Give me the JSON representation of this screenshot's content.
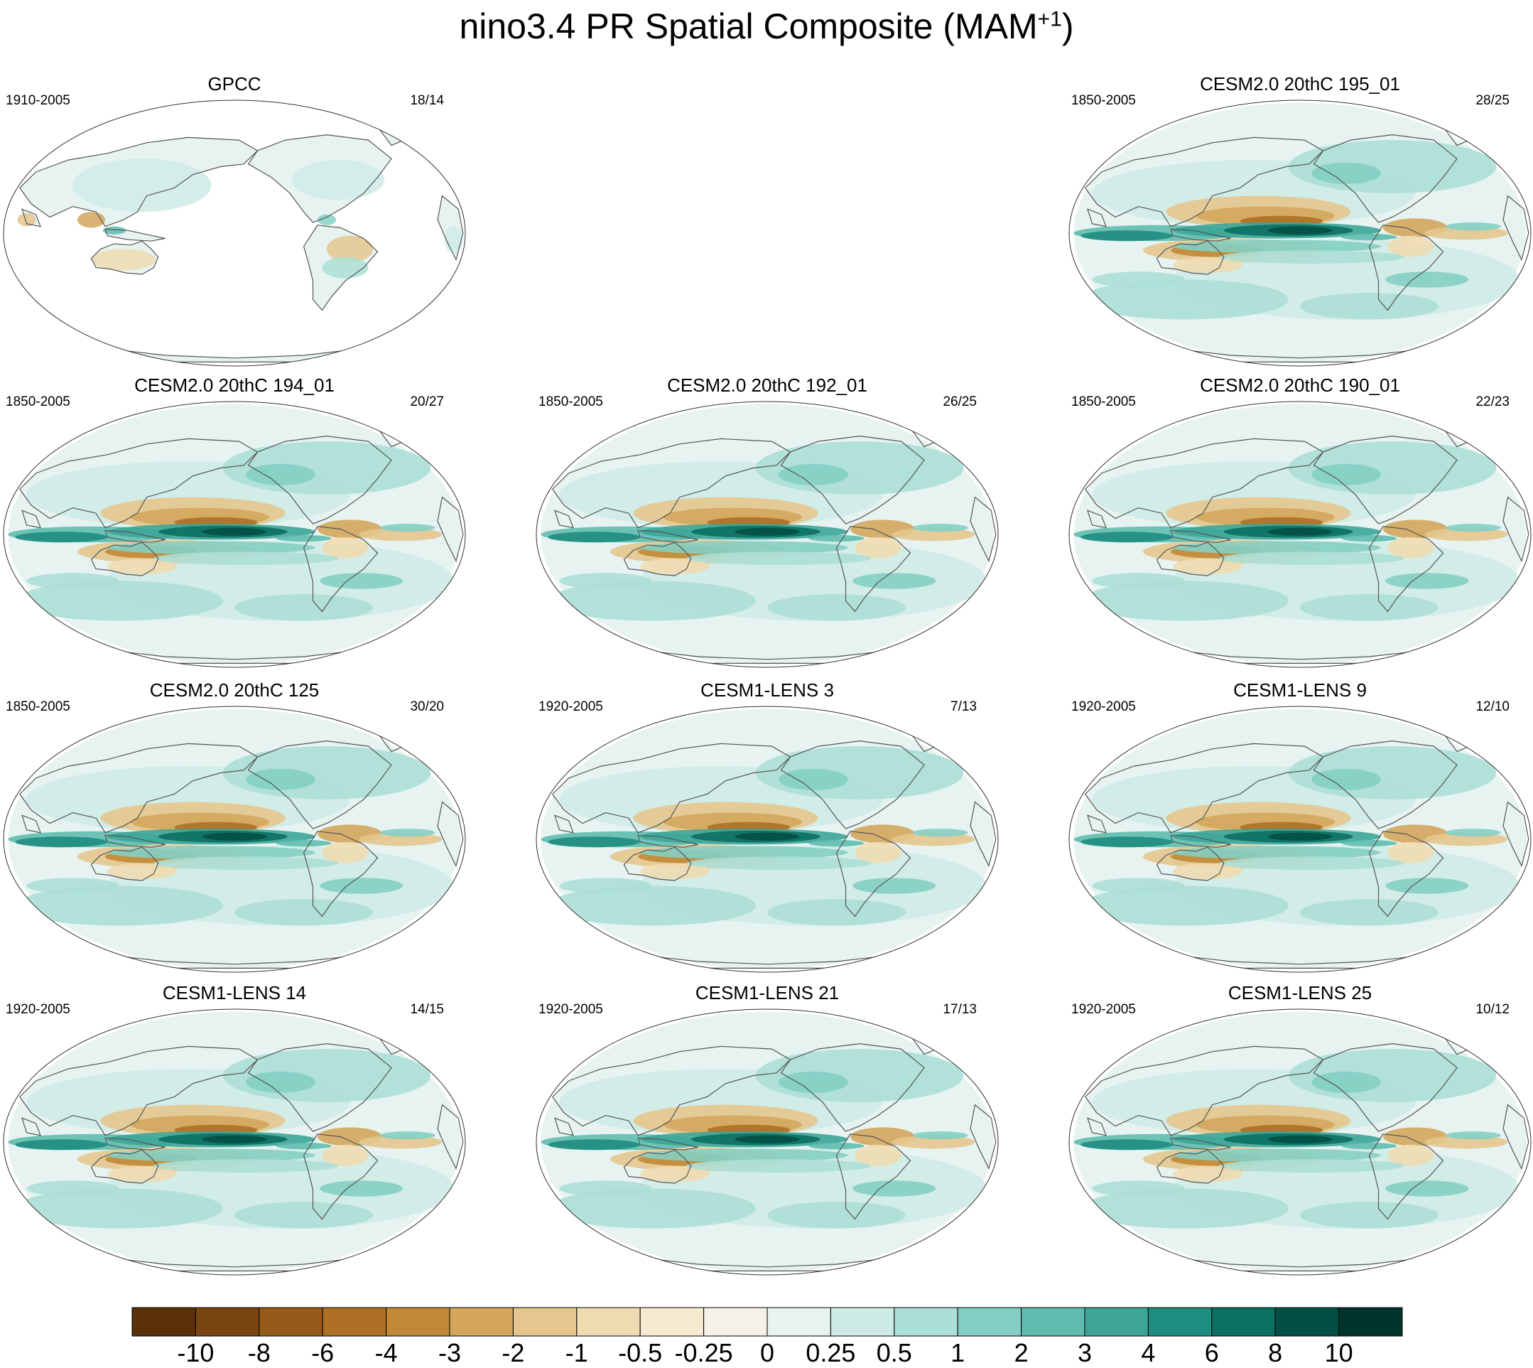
{
  "figure": {
    "title_main": "nino3.4 PR Spatial Composite (MAM",
    "title_sup": "+1",
    "title_close": ")"
  },
  "panels": [
    {
      "id": "gpcc",
      "title": "GPCC",
      "period": "1910-2005",
      "count": "18/14",
      "type": "obs"
    },
    {
      "id": "cesm2-195",
      "title": "CESM2.0 20thC 195_01",
      "period": "1850-2005",
      "count": "28/25",
      "type": "model"
    },
    {
      "id": "cesm2-194",
      "title": "CESM2.0 20thC 194_01",
      "period": "1850-2005",
      "count": "20/27",
      "type": "model"
    },
    {
      "id": "cesm2-192",
      "title": "CESM2.0 20thC 192_01",
      "period": "1850-2005",
      "count": "26/25",
      "type": "model"
    },
    {
      "id": "cesm2-190",
      "title": "CESM2.0 20thC 190_01",
      "period": "1850-2005",
      "count": "22/23",
      "type": "model"
    },
    {
      "id": "cesm2-125",
      "title": "CESM2.0 20thC 125",
      "period": "1850-2005",
      "count": "30/20",
      "type": "model"
    },
    {
      "id": "lens3",
      "title": "CESM1-LENS 3",
      "period": "1920-2005",
      "count": "7/13",
      "type": "model"
    },
    {
      "id": "lens9",
      "title": "CESM1-LENS 9",
      "period": "1920-2005",
      "count": "12/10",
      "type": "model"
    },
    {
      "id": "lens14",
      "title": "CESM1-LENS 14",
      "period": "1920-2005",
      "count": "14/15",
      "type": "model"
    },
    {
      "id": "lens21",
      "title": "CESM1-LENS 21",
      "period": "1920-2005",
      "count": "17/13",
      "type": "model"
    },
    {
      "id": "lens25",
      "title": "CESM1-LENS 25",
      "period": "1920-2005",
      "count": "10/12",
      "type": "model"
    }
  ],
  "chart_data": {
    "type": "heatmap",
    "title": "nino3.4 PR Spatial Composite (MAM+1)",
    "colorbar": {
      "ticks": [
        "-10",
        "-8",
        "-6",
        "-4",
        "-3",
        "-2",
        "-1",
        "-0.5",
        "-0.25",
        "0",
        "0.25",
        "0.5",
        "1",
        "2",
        "3",
        "4",
        "6",
        "8",
        "10"
      ],
      "colors": [
        "#5a3108",
        "#7a4510",
        "#955a18",
        "#ad7026",
        "#c08935",
        "#d3a65c",
        "#e4c68e",
        "#efdbb1",
        "#f5e9cf",
        "#f5f1e8",
        "#e6f3f1",
        "#cfebe6",
        "#acdfd6",
        "#84cfc3",
        "#5fbcaf",
        "#3ca597",
        "#1e8c7e",
        "#0b6f61",
        "#044f43",
        "#01352c"
      ]
    }
  }
}
